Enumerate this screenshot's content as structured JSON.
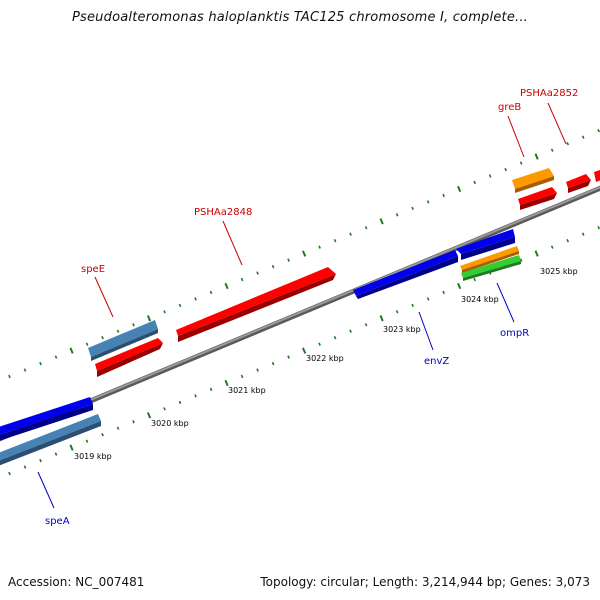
{
  "title": "Pseudoalteromonas haloplanktis TAC125 chromosome I, complete...",
  "footer": {
    "accession": "Accession: NC_007481",
    "summary": "Topology: circular; Length: 3,214,944 bp; Genes: 3,073"
  },
  "colors": {
    "backbone": "#8c8c8c",
    "tick": "#1f7a1f",
    "label_red": "#cc0000",
    "label_blue": "#0000cc",
    "gene_red": "#ff0000",
    "gene_blue": "#0000ee",
    "gene_steelblue": "#4682b4",
    "gene_orange": "#ff9900",
    "gene_green": "#33cc33"
  },
  "scale_labels": [
    "3019 kbp",
    "3020 kbp",
    "3021 kbp",
    "3022 kbp",
    "3023 kbp",
    "3024 kbp",
    "3025 kbp"
  ],
  "genes": [
    {
      "id": "speA",
      "label": "speA",
      "color": "gene_steelblue",
      "label_color": "label_blue"
    },
    {
      "id": "blue-left",
      "label": "",
      "color": "gene_blue"
    },
    {
      "id": "speE",
      "label": "speE",
      "color": "gene_steelblue",
      "label_color": "label_red"
    },
    {
      "id": "red-left",
      "label": "",
      "color": "gene_red"
    },
    {
      "id": "PSHAa2848",
      "label": "PSHAa2848",
      "color": "gene_red",
      "label_color": "label_red"
    },
    {
      "id": "envZ",
      "label": "envZ",
      "color": "gene_blue",
      "label_color": "label_blue"
    },
    {
      "id": "ompR",
      "label": "ompR",
      "color": "gene_blue",
      "label_color": "label_blue"
    },
    {
      "id": "orange-ompR",
      "label": "",
      "color": "gene_orange"
    },
    {
      "id": "green-ompR",
      "label": "",
      "color": "gene_green"
    },
    {
      "id": "greB",
      "label": "greB",
      "color": "gene_orange",
      "label_color": "label_red"
    },
    {
      "id": "red-greB",
      "label": "",
      "color": "gene_red"
    },
    {
      "id": "PSHAa2852",
      "label": "PSHAa2852",
      "color": "gene_red",
      "label_color": "label_red"
    }
  ]
}
